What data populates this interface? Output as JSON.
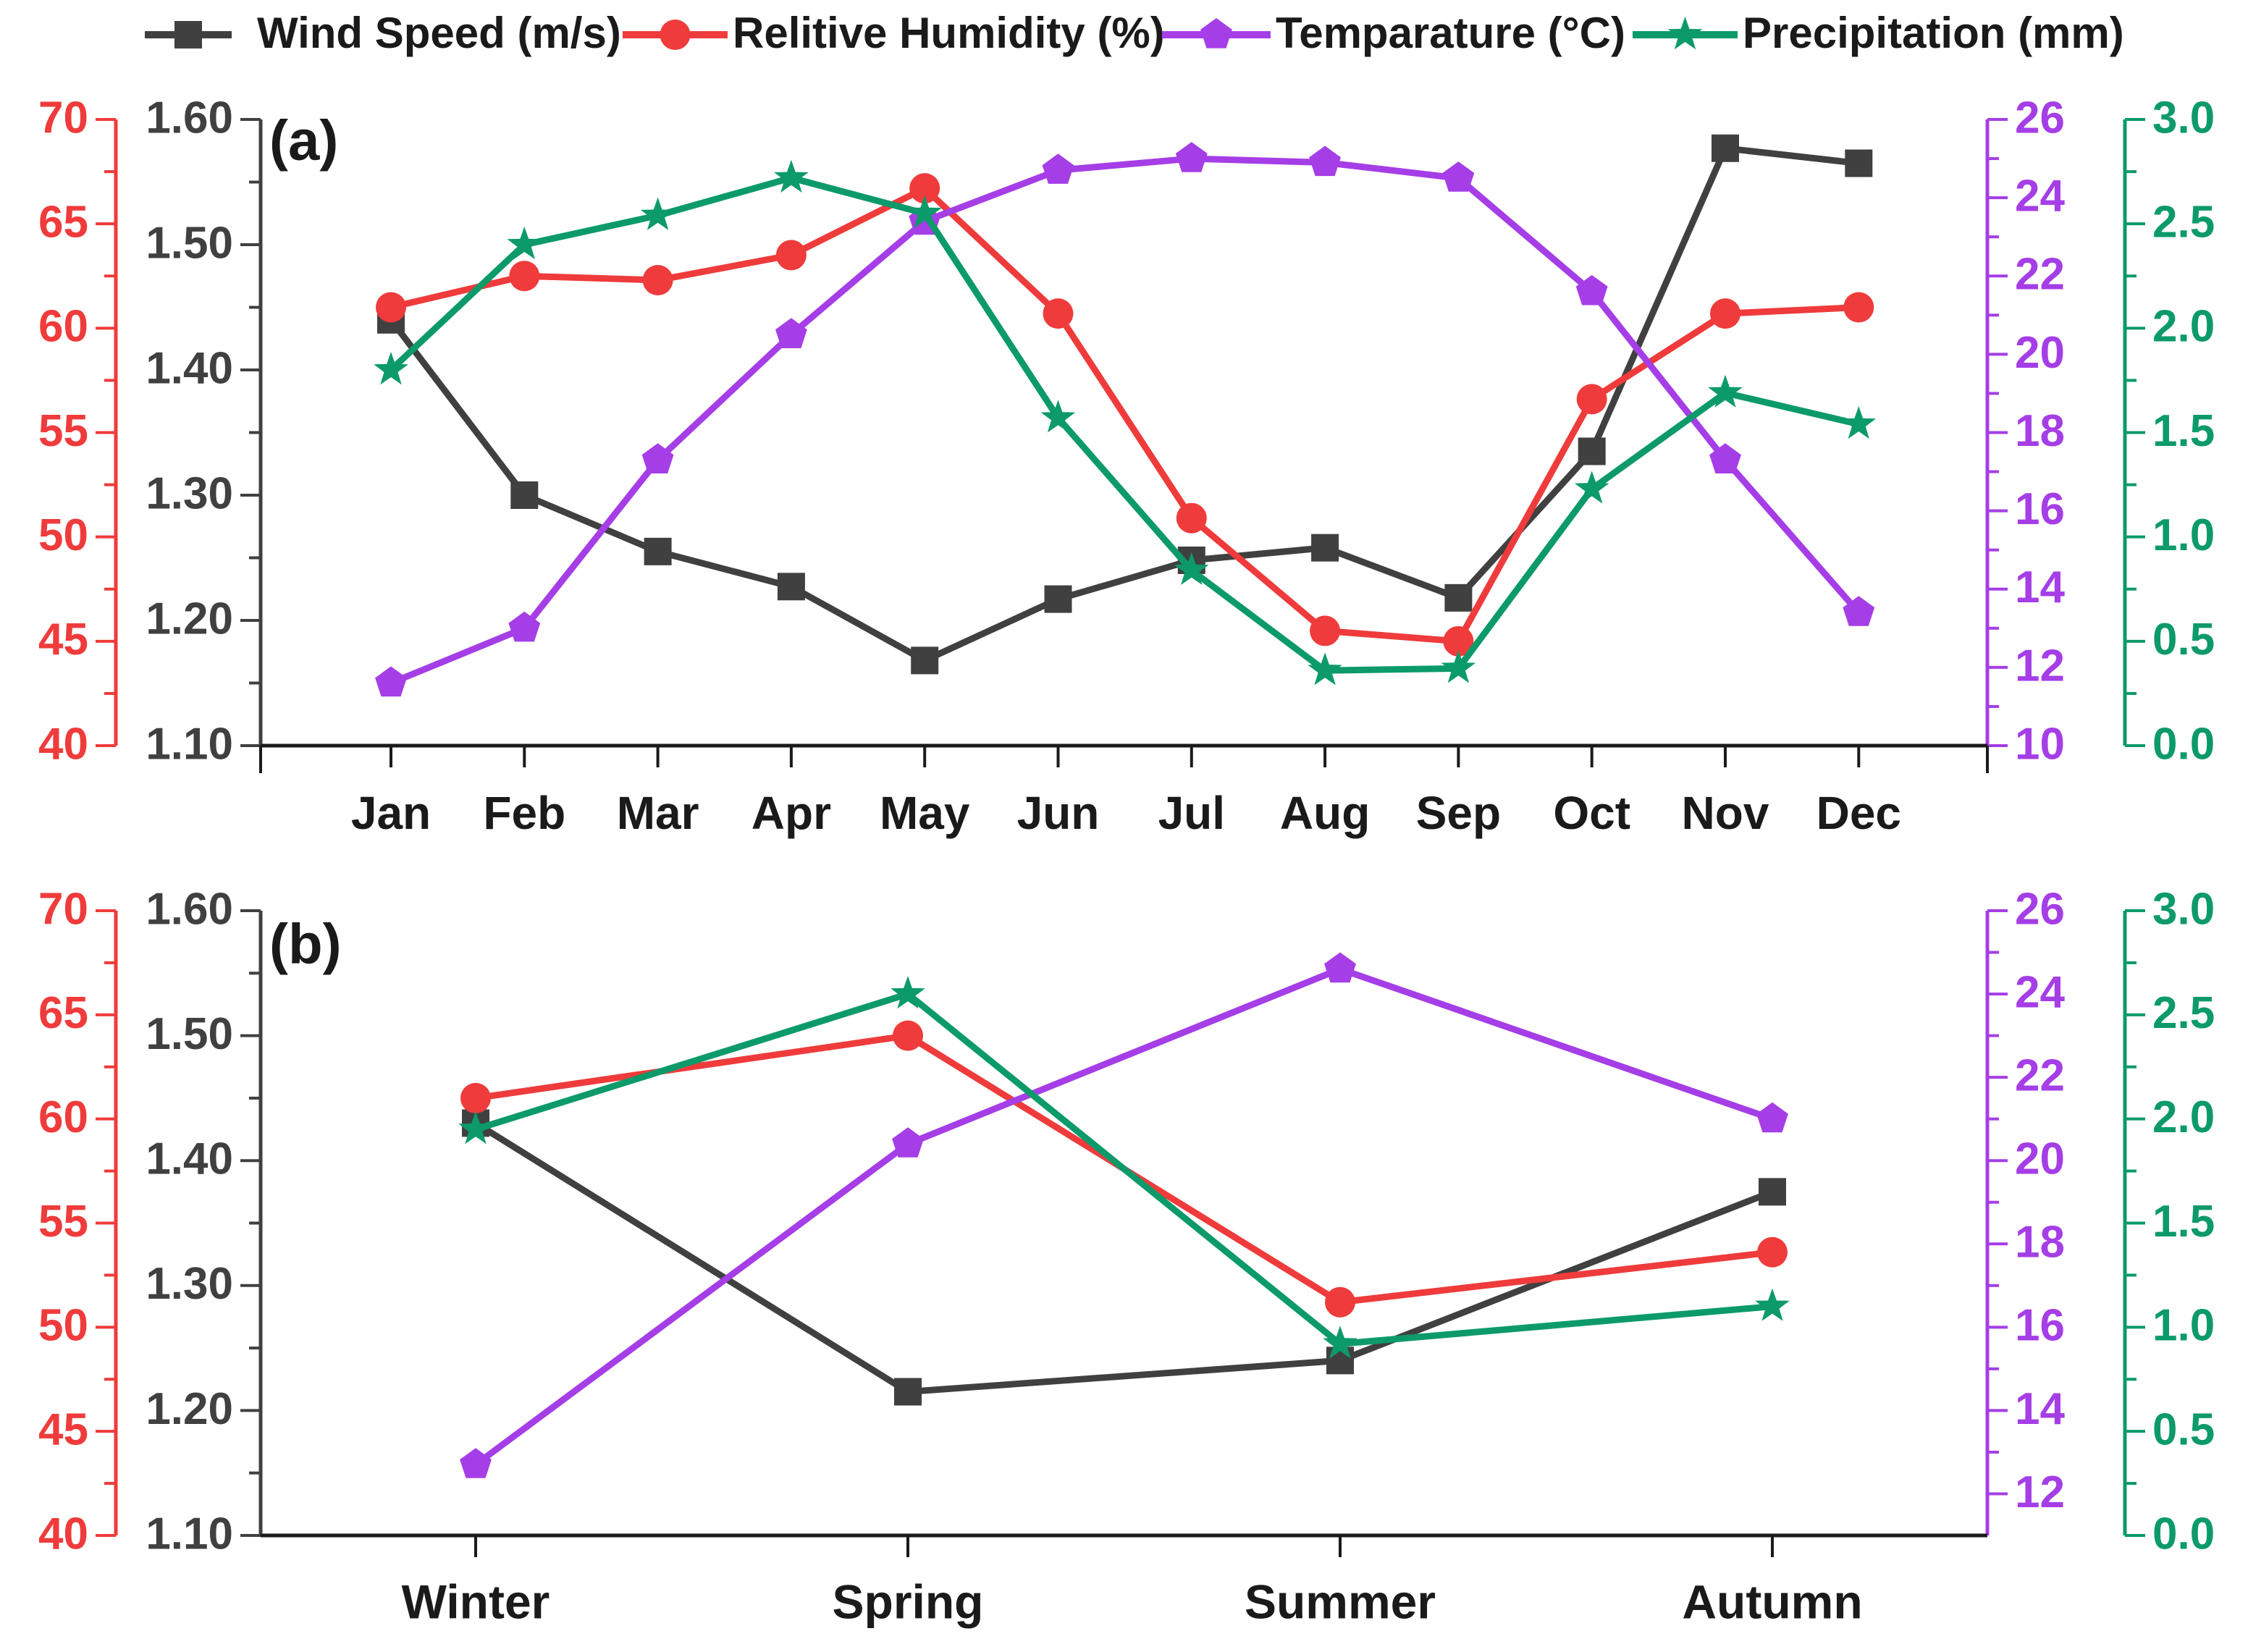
{
  "legend": [
    {
      "label": "Wind Speed (m/s)",
      "color": "#404040",
      "marker": "square"
    },
    {
      "label": "Relitive Humidity (%)",
      "color": "#ef3b3b",
      "marker": "circle"
    },
    {
      "label": "Temparature (°C)",
      "color": "#a53ee6",
      "marker": "pentagon"
    },
    {
      "label": "Precipitation (mm)",
      "color": "#0c9a6a",
      "marker": "star"
    }
  ],
  "chart_data": [
    {
      "type": "line",
      "panel_label": "(a)",
      "categories": [
        "Jan",
        "Feb",
        "Mar",
        "Apr",
        "May",
        "Jun",
        "Jul",
        "Aug",
        "Sep",
        "Oct",
        "Nov",
        "Dec"
      ],
      "axes": {
        "humidity": {
          "range": [
            40,
            70
          ],
          "ticks": [
            40,
            45,
            50,
            55,
            60,
            65,
            70
          ],
          "tick_labels": [
            "40",
            "45",
            "50",
            "55",
            "60",
            "65",
            "70"
          ],
          "color": "#ef3b3b",
          "side": "left-outer"
        },
        "wind": {
          "range": [
            1.1,
            1.6
          ],
          "ticks": [
            1.1,
            1.2,
            1.3,
            1.4,
            1.5,
            1.6
          ],
          "tick_labels": [
            "1.10",
            "1.20",
            "1.30",
            "1.40",
            "1.50",
            "1.60"
          ],
          "color": "#404040",
          "side": "left-inner"
        },
        "temperature": {
          "range": [
            10,
            26
          ],
          "ticks": [
            10,
            12,
            14,
            16,
            18,
            20,
            22,
            24,
            26
          ],
          "tick_labels": [
            "10",
            "12",
            "14",
            "16",
            "18",
            "20",
            "22",
            "24",
            "26"
          ],
          "color": "#a53ee6",
          "side": "right-inner"
        },
        "precipitation": {
          "range": [
            0,
            3
          ],
          "ticks": [
            0,
            0.5,
            1,
            1.5,
            2,
            2.5,
            3
          ],
          "tick_labels": [
            "0.0",
            "0.5",
            "1.0",
            "1.5",
            "2.0",
            "2.5",
            "3.0"
          ],
          "color": "#0c9a6a",
          "side": "right-outer"
        }
      },
      "series": [
        {
          "name": "Wind Speed (m/s)",
          "axis": "wind",
          "marker": "square",
          "color": "#404040",
          "values": [
            1.44,
            1.3,
            1.255,
            1.227,
            1.168,
            1.217,
            1.248,
            1.258,
            1.218,
            1.335,
            1.577,
            1.565
          ]
        },
        {
          "name": "Relitive Humidity (%)",
          "axis": "humidity",
          "marker": "circle",
          "color": "#ef3b3b",
          "values": [
            61.0,
            62.5,
            62.3,
            63.5,
            66.7,
            60.7,
            50.9,
            45.5,
            45.0,
            56.6,
            60.7,
            61.0
          ]
        },
        {
          "name": "Temparature (°C)",
          "axis": "temperature",
          "marker": "pentagon",
          "color": "#a53ee6",
          "values": [
            11.6,
            13.0,
            17.3,
            20.5,
            23.4,
            24.7,
            25.0,
            24.9,
            24.5,
            21.6,
            17.3,
            13.4
          ]
        },
        {
          "name": "Precipitation (mm)",
          "axis": "precipitation",
          "marker": "star",
          "color": "#0c9a6a",
          "values": [
            1.8,
            2.4,
            2.54,
            2.72,
            2.55,
            1.57,
            0.84,
            0.36,
            0.37,
            1.23,
            1.69,
            1.54
          ]
        }
      ]
    },
    {
      "type": "line",
      "panel_label": "(b)",
      "categories": [
        "Winter",
        "Spring",
        "Summer",
        "Autumn"
      ],
      "axes": {
        "humidity": {
          "range": [
            40,
            70
          ],
          "ticks": [
            40,
            45,
            50,
            55,
            60,
            65,
            70
          ],
          "tick_labels": [
            "40",
            "45",
            "50",
            "55",
            "60",
            "65",
            "70"
          ],
          "color": "#ef3b3b",
          "side": "left-outer"
        },
        "wind": {
          "range": [
            1.1,
            1.6
          ],
          "ticks": [
            1.1,
            1.2,
            1.3,
            1.4,
            1.5,
            1.6
          ],
          "tick_labels": [
            "1.10",
            "1.20",
            "1.30",
            "1.40",
            "1.50",
            "1.60"
          ],
          "color": "#404040",
          "side": "left-inner"
        },
        "temperature": {
          "range": [
            11,
            26
          ],
          "ticks": [
            12,
            14,
            16,
            18,
            20,
            22,
            24,
            26
          ],
          "tick_labels": [
            "12",
            "14",
            "16",
            "18",
            "20",
            "22",
            "24",
            "26"
          ],
          "color": "#a53ee6",
          "side": "right-inner"
        },
        "precipitation": {
          "range": [
            0,
            3
          ],
          "ticks": [
            0,
            0.5,
            1,
            1.5,
            2,
            2.5,
            3
          ],
          "tick_labels": [
            "0.0",
            "0.5",
            "1.0",
            "1.5",
            "2.0",
            "2.5",
            "3.0"
          ],
          "color": "#0c9a6a",
          "side": "right-outer"
        }
      },
      "series": [
        {
          "name": "Wind Speed (m/s)",
          "axis": "wind",
          "marker": "square",
          "color": "#404040",
          "values": [
            1.43,
            1.215,
            1.24,
            1.375
          ]
        },
        {
          "name": "Relitive Humidity (%)",
          "axis": "humidity",
          "marker": "circle",
          "color": "#ef3b3b",
          "values": [
            61.0,
            64.0,
            51.2,
            53.6
          ]
        },
        {
          "name": "Temparature (°C)",
          "axis": "temperature",
          "marker": "pentagon",
          "color": "#a53ee6",
          "values": [
            12.7,
            20.4,
            24.6,
            21.0
          ]
        },
        {
          "name": "Precipitation (mm)",
          "axis": "precipitation",
          "marker": "star",
          "color": "#0c9a6a",
          "values": [
            1.95,
            2.6,
            0.92,
            1.1
          ]
        }
      ]
    }
  ]
}
